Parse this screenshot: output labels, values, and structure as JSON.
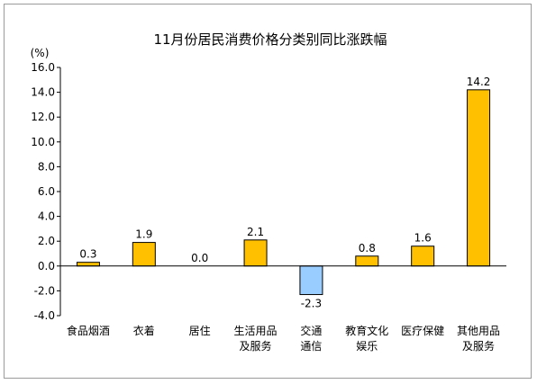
{
  "chart_data": {
    "type": "bar",
    "title": "11月份居民消费价格分类别同比涨跌幅",
    "unit_label": "(%)",
    "ylim": [
      -4.0,
      16.0
    ],
    "y_ticks": [
      "16.0",
      "14.0",
      "12.0",
      "10.0",
      "8.0",
      "6.0",
      "4.0",
      "2.0",
      "0.0",
      "-2.0",
      "-4.0"
    ],
    "categories": [
      [
        "食品烟酒"
      ],
      [
        "衣着"
      ],
      [
        "居住"
      ],
      [
        "生活用品",
        "及服务"
      ],
      [
        "交通",
        "通信"
      ],
      [
        "教育文化",
        "娱乐"
      ],
      [
        "医疗保健"
      ],
      [
        "其他用品",
        "及服务"
      ]
    ],
    "values": [
      0.3,
      1.9,
      0.0,
      2.1,
      -2.3,
      0.8,
      1.6,
      14.2
    ],
    "value_labels": [
      "0.3",
      "1.9",
      "0.0",
      "2.1",
      "-2.3",
      "0.8",
      "1.6",
      "14.2"
    ],
    "colors": {
      "positive": "#FFC000",
      "negative": "#99CCFF",
      "stroke": "#000000"
    },
    "grid": false,
    "legend": "none"
  }
}
